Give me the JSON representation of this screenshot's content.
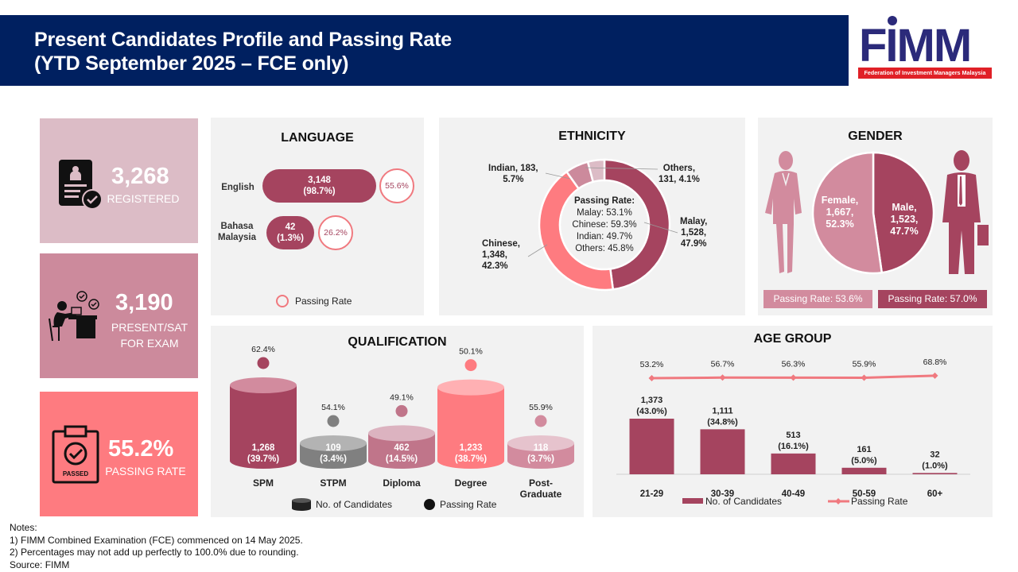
{
  "header": {
    "title_line1": "Present Candidates Profile and Passing Rate",
    "title_line2": "(YTD September 2025 – FCE only)",
    "logo_text": "FIMM",
    "logo_tagline": "Federation of Investment Managers Malaysia"
  },
  "kpis": [
    {
      "value": "3,268",
      "label": "REGISTERED",
      "icon": "registration-form-check-icon",
      "color": "#dcbcc6"
    },
    {
      "value": "3,190",
      "label_line1": "PRESENT/SAT",
      "label_line2": "FOR EXAM",
      "icon": "student-exam-desk-icon",
      "color": "#cc8a9c"
    },
    {
      "value": "55.2%",
      "label": "PASSING RATE",
      "icon": "passed-clipboard-icon",
      "color": "#fe7b80"
    }
  ],
  "colors": {
    "maroon": "#a5445f",
    "mauve": "#c0758a",
    "pink": "#d28b9e",
    "light_pink": "#dcbcc6",
    "coral": "#fe7b80",
    "grey": "#808080",
    "navy": "#002060",
    "panel": "#f2f2f2"
  },
  "chart_data": [
    {
      "type": "bar",
      "title": "LANGUAGE",
      "categories": [
        "English",
        "Bahasa Malaysia"
      ],
      "series": [
        {
          "name": "No. of Candidates",
          "values": [
            3148,
            42
          ],
          "labels": [
            "3,148",
            "42"
          ],
          "shares": [
            "(98.7%)",
            "(1.3%)"
          ]
        },
        {
          "name": "Passing Rate",
          "values": [
            55.6,
            26.2
          ],
          "labels": [
            "55.6%",
            "26.2%"
          ]
        }
      ],
      "legend": "Passing Rate",
      "legend_position": "bottom"
    },
    {
      "type": "pie",
      "title": "ETHNICITY",
      "donut": true,
      "slices": [
        {
          "name": "Malay",
          "value": 1528,
          "label_line1": "Malay,",
          "label_line2": "1,528,",
          "label_line3": "47.9%",
          "pct": 47.9,
          "color": "#a5445f"
        },
        {
          "name": "Chinese",
          "value": 1348,
          "label_line1": "Chinese,",
          "label_line2": "1,348,",
          "label_line3": "42.3%",
          "pct": 42.3,
          "color": "#fe7b80"
        },
        {
          "name": "Indian",
          "value": 183,
          "label_line1": "Indian, 183,",
          "label_line2": "5.7%",
          "pct": 5.7,
          "color": "#cc8a9c"
        },
        {
          "name": "Others",
          "value": 131,
          "label_line1": "Others,",
          "label_line2": "131, 4.1%",
          "pct": 4.1,
          "color": "#dcbcc6"
        }
      ],
      "center_title": "Passing Rate:",
      "center_lines": [
        "Malay: 53.1%",
        "Chinese: 59.3%",
        "Indian: 49.7%",
        "Others: 45.8%"
      ]
    },
    {
      "type": "pie",
      "title": "GENDER",
      "slices": [
        {
          "name": "Female",
          "value": 1667,
          "pct": 52.3,
          "label_line1": "Female,",
          "label_line2": "1,667,",
          "label_line3": "52.3%",
          "color": "#d28b9e",
          "passing_rate": "Passing Rate: 53.6%"
        },
        {
          "name": "Male",
          "value": 1523,
          "pct": 47.7,
          "label_line1": "Male,",
          "label_line2": "1,523,",
          "label_line3": "47.7%",
          "color": "#a5445f",
          "passing_rate": "Passing Rate: 57.0%"
        }
      ]
    },
    {
      "type": "bar",
      "title": "QUALIFICATION",
      "categories": [
        "SPM",
        "STPM",
        "Diploma",
        "Degree",
        "Post-Graduate"
      ],
      "category_lines": [
        [
          "SPM"
        ],
        [
          "STPM"
        ],
        [
          "Diploma"
        ],
        [
          "Degree"
        ],
        [
          "Post-",
          "Graduate"
        ]
      ],
      "series": [
        {
          "name": "No. of Candidates",
          "values": [
            1268,
            109,
            462,
            1233,
            118
          ],
          "labels": [
            "1,268",
            "109",
            "462",
            "1,233",
            "118"
          ],
          "shares": [
            "(39.7%)",
            "(3.4%)",
            "(14.5%)",
            "(38.7%)",
            "(3.7%)"
          ]
        },
        {
          "name": "Passing Rate",
          "values": [
            62.4,
            54.1,
            49.1,
            50.1,
            55.9
          ],
          "labels": [
            "62.4%",
            "54.1%",
            "49.1%",
            "50.1%",
            "55.9%"
          ]
        }
      ],
      "bar_colors": [
        "#a5445f",
        "#808080",
        "#c0758a",
        "#fe7b80",
        "#d28b9e"
      ],
      "legend": [
        "No. of Candidates",
        "Passing Rate"
      ],
      "legend_position": "bottom"
    },
    {
      "type": "bar",
      "title": "AGE GROUP",
      "categories": [
        "21-29",
        "30-39",
        "40-49",
        "50-59",
        "60+"
      ],
      "series": [
        {
          "name": "No. of Candidates",
          "type": "bar",
          "values": [
            1373,
            1111,
            513,
            161,
            32
          ],
          "labels": [
            "1,373",
            "1,111",
            "513",
            "161",
            "32"
          ],
          "shares": [
            "(43.0%)",
            "(34.8%)",
            "(16.1%)",
            "(5.0%)",
            "(1.0%)"
          ],
          "color": "#a5445f"
        },
        {
          "name": "Passing Rate",
          "type": "line",
          "values": [
            53.2,
            56.7,
            56.3,
            55.9,
            68.8
          ],
          "labels": [
            "53.2%",
            "56.7%",
            "56.3%",
            "55.9%",
            "68.8%"
          ],
          "color": "#f0797f"
        }
      ],
      "legend": [
        "No. of Candidates",
        "Passing Rate"
      ],
      "legend_position": "bottom"
    }
  ],
  "notes": [
    "Notes:",
    "1) FIMM Combined Examination (FCE) commenced on 14 May 2025.",
    "2) Percentages may not add up perfectly to 100.0% due to rounding.",
    "Source: FIMM"
  ]
}
